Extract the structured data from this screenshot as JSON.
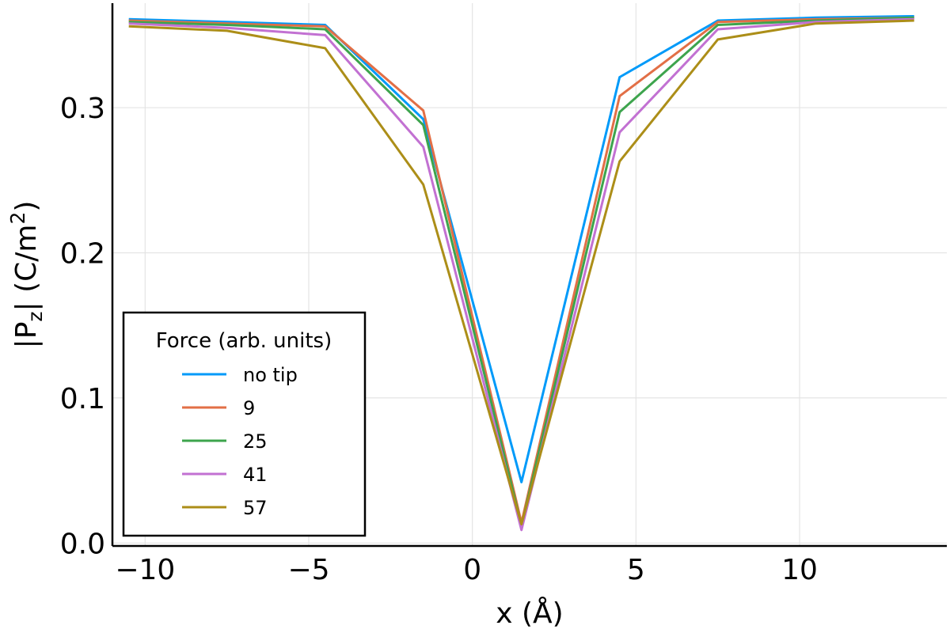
{
  "chart_data": {
    "type": "line",
    "xlabel": "x (Å)",
    "ylabel_main": "|P",
    "ylabel_sub": "z",
    "ylabel_rest": "| (C/m",
    "ylabel_sup": "2",
    "ylabel_end": ")",
    "xlim": [
      -11,
      14.5
    ],
    "ylim": [
      -0.002,
      0.372
    ],
    "xticks": [
      -10,
      -5,
      0,
      5,
      10
    ],
    "xtick_labels": [
      "−10",
      "−5",
      "0",
      "5",
      "10"
    ],
    "yticks": [
      0.0,
      0.1,
      0.2,
      0.3
    ],
    "ytick_labels": [
      "0.0",
      "0.1",
      "0.2",
      "0.3"
    ],
    "grid": true,
    "legend": {
      "title": "Force (arb. units)",
      "placement": "bottom-left"
    },
    "x": [
      -10.5,
      -7.5,
      -4.5,
      -1.5,
      1.5,
      4.5,
      7.5,
      10.5,
      13.5
    ],
    "series": [
      {
        "name": "no tip",
        "color": "#009af9",
        "values": [
          0.361,
          0.359,
          0.357,
          0.292,
          0.042,
          0.321,
          0.36,
          0.362,
          0.363
        ]
      },
      {
        "name": "9",
        "color": "#e26f46",
        "values": [
          0.36,
          0.358,
          0.356,
          0.298,
          0.014,
          0.308,
          0.359,
          0.361,
          0.362
        ]
      },
      {
        "name": "25",
        "color": "#3da44d",
        "values": [
          0.359,
          0.357,
          0.354,
          0.288,
          0.012,
          0.297,
          0.357,
          0.36,
          0.362
        ]
      },
      {
        "name": "41",
        "color": "#c271d2",
        "values": [
          0.358,
          0.355,
          0.35,
          0.273,
          0.009,
          0.283,
          0.354,
          0.359,
          0.361
        ]
      },
      {
        "name": "57",
        "color": "#ac8e18",
        "values": [
          0.356,
          0.353,
          0.341,
          0.247,
          0.013,
          0.263,
          0.347,
          0.358,
          0.36
        ]
      }
    ]
  }
}
